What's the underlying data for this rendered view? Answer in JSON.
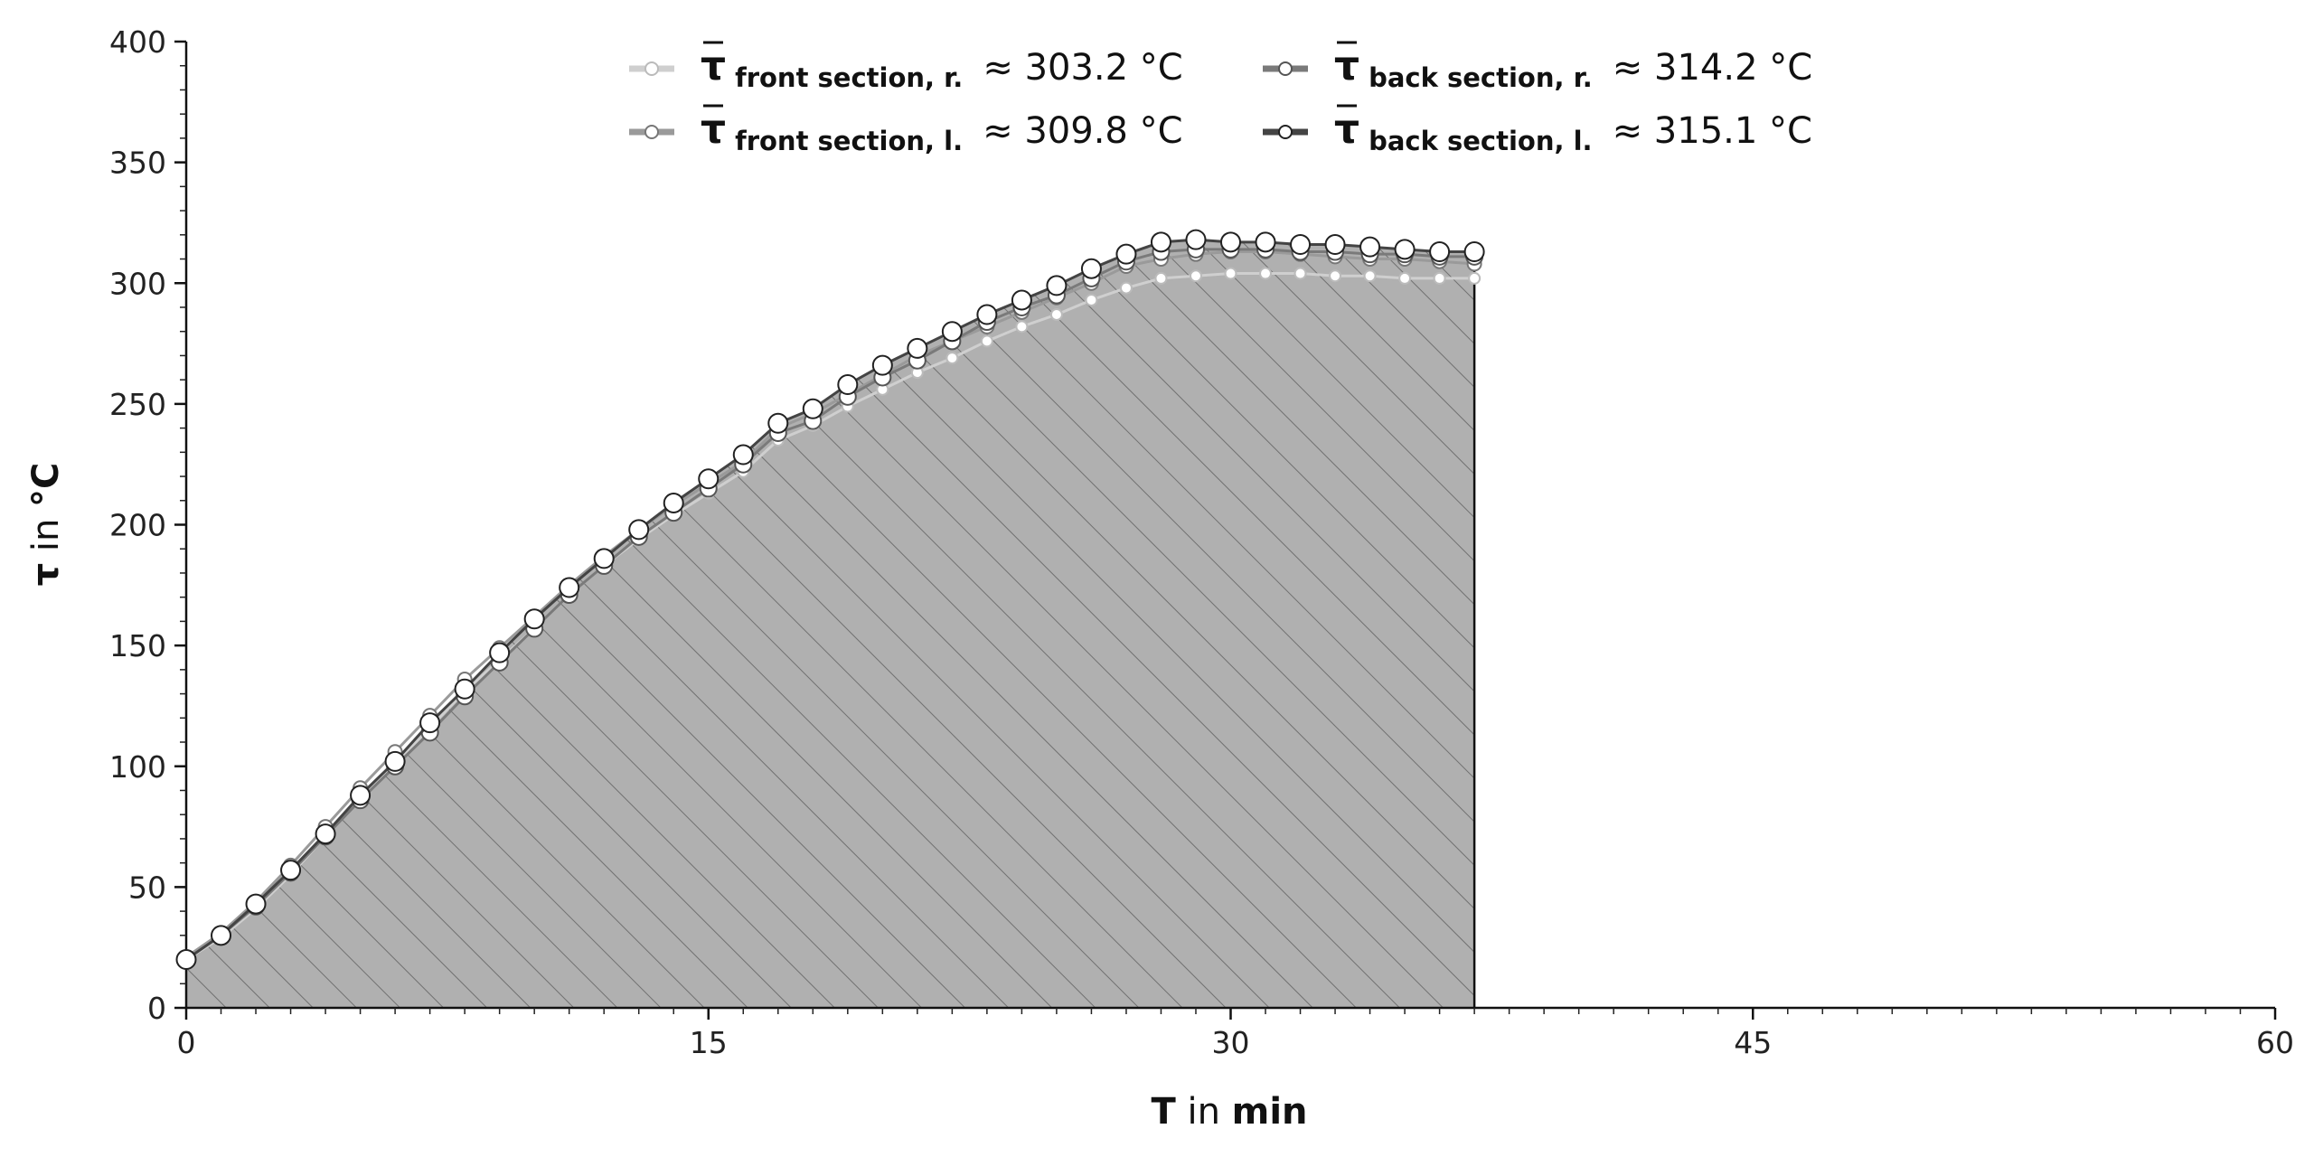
{
  "chart_data": {
    "type": "line",
    "xlabel": {
      "symbol": "T",
      "mid": " in ",
      "unit": "min"
    },
    "ylabel": {
      "symbol": "τ",
      "mid": " in ",
      "unit": "°C"
    },
    "xlim": [
      0,
      60
    ],
    "ylim": [
      0,
      400
    ],
    "xticks": [
      0,
      15,
      30,
      45,
      60
    ],
    "yticks": [
      0,
      50,
      100,
      150,
      200,
      250,
      300,
      350,
      400
    ],
    "x": [
      0,
      1,
      2,
      3,
      4,
      5,
      6,
      7,
      8,
      9,
      10,
      11,
      12,
      13,
      14,
      15,
      16,
      17,
      18,
      19,
      20,
      21,
      22,
      23,
      24,
      25,
      26,
      27,
      28,
      29,
      30,
      31,
      32,
      33,
      34,
      35,
      36,
      37
    ],
    "fill": {
      "end_x": 37,
      "hatch": true,
      "color": "#b0b0b0"
    },
    "series": [
      {
        "key": "front-r",
        "legend_main": "τ",
        "legend_sub": "front section,  r.",
        "legend_value": "≈ 303.2 °C",
        "line_color": "#cfcfcf",
        "marker_fill": "#ffffff",
        "marker_stroke": "#bbbbbb",
        "values": [
          20,
          29,
          41,
          55,
          71,
          86,
          101,
          116,
          131,
          144,
          157,
          171,
          183,
          194,
          204,
          213,
          222,
          235,
          241,
          249,
          256,
          263,
          269,
          276,
          282,
          287,
          293,
          298,
          302,
          303,
          304,
          304,
          304,
          303,
          303,
          302,
          302,
          302
        ]
      },
      {
        "key": "front-l",
        "legend_main": "τ",
        "legend_sub": "front section,  l.",
        "legend_value": "≈ 309.8 °C",
        "line_color": "#9a9a9a",
        "marker_fill": "#ffffff",
        "marker_stroke": "#777777",
        "values": [
          21,
          31,
          44,
          59,
          75,
          91,
          106,
          121,
          136,
          149,
          162,
          175,
          187,
          198,
          208,
          217,
          226,
          240,
          246,
          254,
          262,
          270,
          276,
          282,
          288,
          294,
          300,
          307,
          310,
          312,
          313,
          313,
          312,
          311,
          310,
          310,
          309,
          308
        ]
      },
      {
        "key": "back-r",
        "legend_main": "τ",
        "legend_sub": "back section,  r.",
        "legend_value": "≈ 314.2 °C",
        "line_color": "#7a7a7a",
        "marker_fill": "#ffffff",
        "marker_stroke": "#555555",
        "values": [
          20,
          30,
          42,
          56,
          71,
          86,
          100,
          114,
          129,
          143,
          157,
          171,
          183,
          195,
          205,
          215,
          225,
          238,
          243,
          253,
          261,
          268,
          276,
          284,
          290,
          295,
          302,
          309,
          313,
          314,
          314,
          314,
          313,
          313,
          312,
          312,
          311,
          311
        ]
      },
      {
        "key": "back-l",
        "legend_main": "τ",
        "legend_sub": "back section,  l.",
        "legend_value": "≈ 315.1 °C",
        "line_color": "#444444",
        "marker_fill": "#ffffff",
        "marker_stroke": "#222222",
        "values": [
          20,
          30,
          43,
          57,
          72,
          88,
          102,
          118,
          132,
          147,
          161,
          174,
          186,
          198,
          209,
          219,
          229,
          242,
          248,
          258,
          266,
          273,
          280,
          287,
          293,
          299,
          306,
          312,
          317,
          318,
          317,
          317,
          316,
          316,
          315,
          314,
          313,
          313
        ]
      }
    ]
  }
}
